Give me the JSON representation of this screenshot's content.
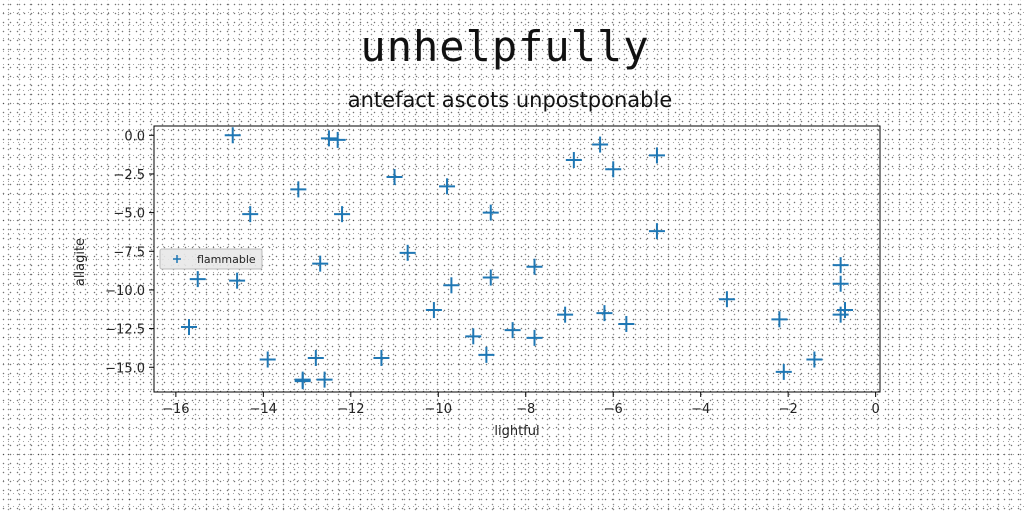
{
  "chart_data": {
    "type": "scatter",
    "title": "unhelpfully",
    "subtitle": "antefact ascots unpostponable",
    "xlabel": "lightful",
    "ylabel": "allagite",
    "xlim": [
      -16.5,
      0.1
    ],
    "ylim": [
      -16.6,
      0.6
    ],
    "xticks": [
      -16,
      -14,
      -12,
      -10,
      -8,
      -6,
      -4,
      -2,
      0
    ],
    "yticks": [
      0.0,
      -2.5,
      -5.0,
      -7.5,
      -10.0,
      -12.5,
      -15.0
    ],
    "xtick_labels": [
      "−16",
      "−14",
      "−12",
      "−10",
      "−8",
      "−6",
      "−4",
      "−2",
      "0"
    ],
    "ytick_labels": [
      "0.0",
      "−2.5",
      "−5.0",
      "−7.5",
      "−10.0",
      "−12.5",
      "−15.0"
    ],
    "grid": false,
    "legend_position": "center-left",
    "color": "#1f77b4",
    "marker": "plus",
    "series": [
      {
        "name": "flammable",
        "x": [
          -14.7,
          -12.5,
          -12.3,
          -13.2,
          -14.3,
          -12.2,
          -11.0,
          -9.8,
          -8.8,
          -10.7,
          -12.7,
          -15.5,
          -14.6,
          -9.7,
          -8.8,
          -7.8,
          -10.1,
          -9.2,
          -8.3,
          -7.8,
          -7.1,
          -15.7,
          -13.9,
          -12.8,
          -13.1,
          -13.1,
          -12.6,
          -11.3,
          -8.9,
          -6.9,
          -6.3,
          -6.0,
          -5.0,
          -5.0,
          -6.2,
          -5.7,
          -3.4,
          -2.2,
          -2.1,
          -1.4,
          -0.8,
          -0.8,
          -0.8,
          -0.7
        ],
        "y": [
          0.0,
          -0.2,
          -0.3,
          -3.5,
          -5.1,
          -5.1,
          -2.7,
          -3.3,
          -5.0,
          -7.6,
          -8.3,
          -9.3,
          -9.4,
          -9.7,
          -9.2,
          -8.5,
          -11.3,
          -13.0,
          -12.6,
          -13.1,
          -11.6,
          -12.4,
          -14.5,
          -14.4,
          -15.9,
          -15.8,
          -15.8,
          -14.4,
          -14.2,
          -1.6,
          -0.6,
          -2.2,
          -1.3,
          -6.2,
          -11.5,
          -12.2,
          -10.6,
          -11.9,
          -15.3,
          -14.5,
          -8.4,
          -9.6,
          -11.6,
          -11.3
        ]
      }
    ]
  }
}
